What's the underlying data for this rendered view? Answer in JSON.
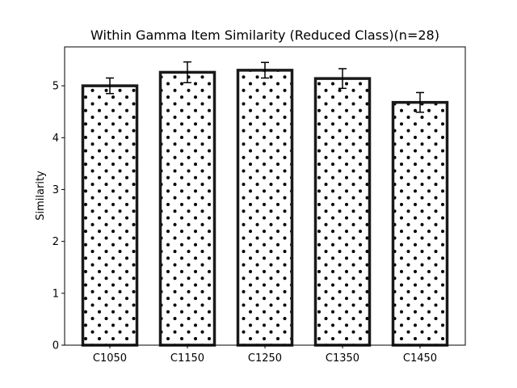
{
  "chart_data": {
    "type": "bar",
    "title": "Within Gamma Item Similarity (Reduced Class)(n=28)",
    "xlabel": "",
    "ylabel": "Similarity",
    "categories": [
      "C1050",
      "C1150",
      "C1250",
      "C1350",
      "C1450"
    ],
    "values": [
      5.0,
      5.26,
      5.3,
      5.14,
      4.68
    ],
    "errors": [
      0.15,
      0.2,
      0.15,
      0.19,
      0.19
    ],
    "ylim": [
      0,
      5.75
    ],
    "yticks": [
      0,
      1,
      2,
      3,
      4,
      5
    ],
    "grid": false,
    "bar_style": "white fill, black outline, dotted hatch",
    "colors": {
      "bar_fill": "#ffffff",
      "bar_edge": "#1a1a1a",
      "hatch": "#000000",
      "error_bar": "#000000"
    }
  }
}
